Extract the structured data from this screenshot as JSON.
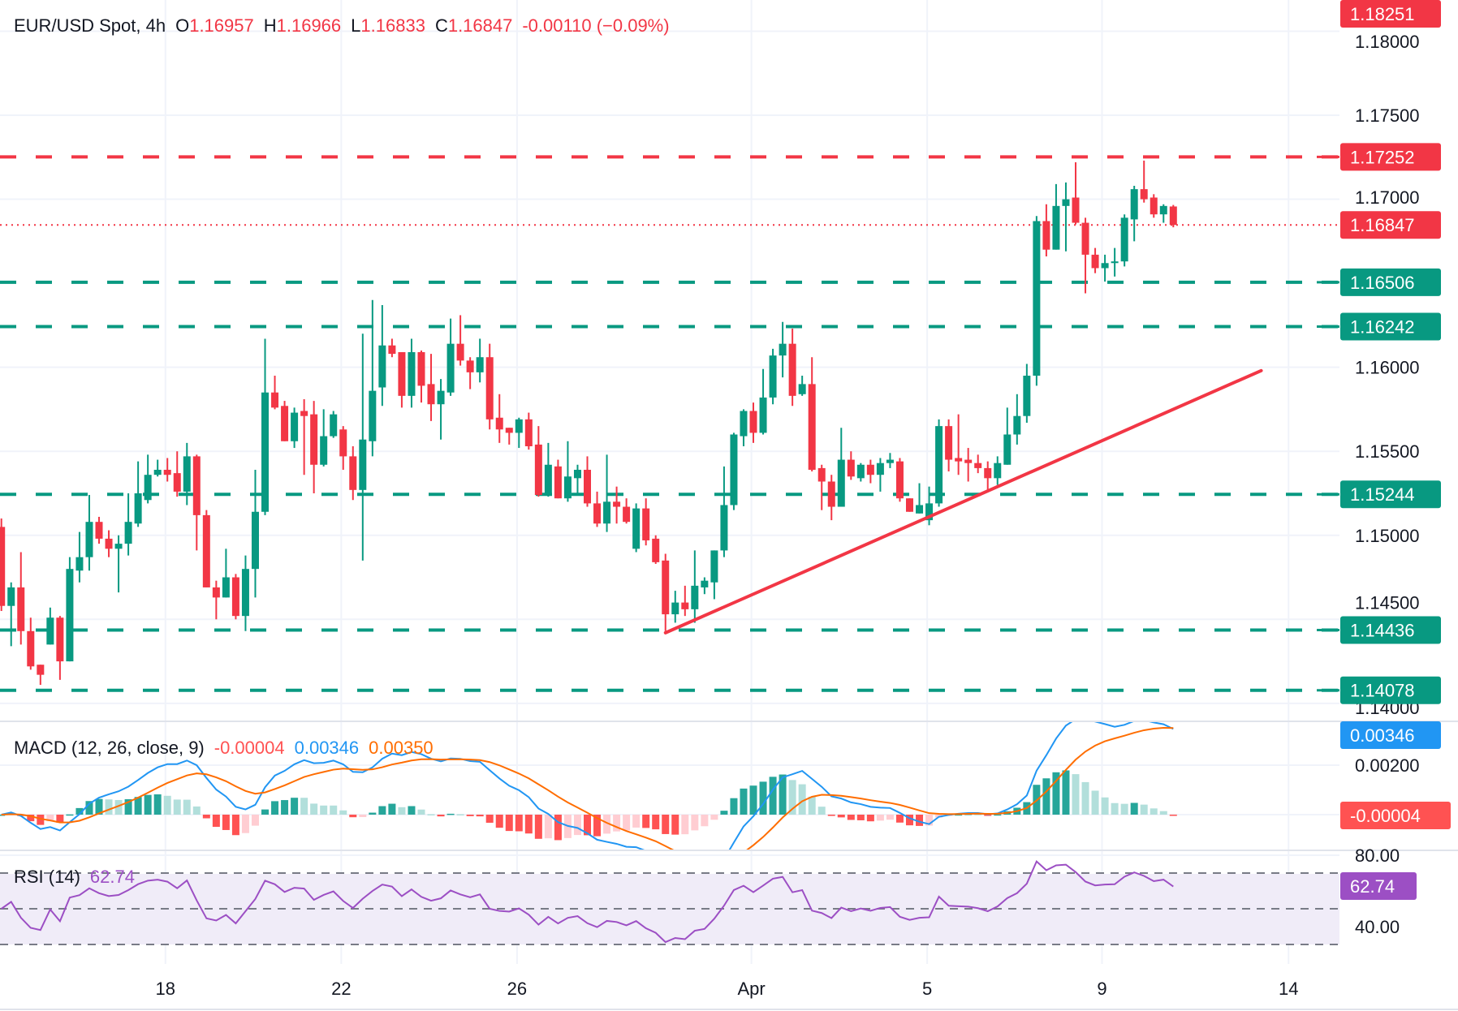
{
  "header": {
    "symbol": "EUR/USD Spot, 4h",
    "open_prefix": "O",
    "open": "1.16957",
    "high_prefix": "H",
    "high": "1.16966",
    "low_prefix": "L",
    "low": "1.16833",
    "close_prefix": "C",
    "close": "1.16847",
    "change": "-0.00110 (−0.09%)"
  },
  "colors": {
    "up": "#089981",
    "down": "#F23645",
    "grid": "#F0F3FA",
    "macd": "#2196F3",
    "signal": "#FF6D00",
    "hist_up_strong": "#26A69A",
    "hist_up_weak": "#B2DFDB",
    "hist_down_strong": "#FF5252",
    "hist_down_weak": "#FFCDD2",
    "rsi": "#9C4FC4",
    "rsi_band": "#F0ECF8"
  },
  "price_axis": {
    "ticks": [
      "1.18000",
      "1.17500",
      "1.17000",
      "1.16000",
      "1.15500",
      "1.15000",
      "1.14500",
      "1.14000"
    ]
  },
  "alert_label": {
    "label": "1.18251",
    "price": 1.18251,
    "color": "#F23645"
  },
  "current_price": {
    "label": "1.16847",
    "price": 1.16847,
    "color": "#F23645"
  },
  "levels": [
    {
      "label": "1.17252",
      "price": 1.17252,
      "color": "#F23645"
    },
    {
      "label": "1.16506",
      "price": 1.16506,
      "color": "#089981"
    },
    {
      "label": "1.16242",
      "price": 1.16242,
      "color": "#089981"
    },
    {
      "label": "1.15244",
      "price": 1.15244,
      "color": "#089981"
    },
    {
      "label": "1.14436",
      "price": 1.14436,
      "color": "#089981"
    },
    {
      "label": "1.14078",
      "price": 1.14078,
      "color": "#089981"
    }
  ],
  "trendline": {
    "color": "#F23645",
    "start": {
      "bar": 68,
      "price": 1.1442
    },
    "end": {
      "bar": 129,
      "price": 1.1598
    }
  },
  "x_axis": {
    "ticks": [
      "18",
      "22",
      "26",
      "Apr",
      "5",
      "9",
      "14"
    ]
  },
  "macd": {
    "title": "MACD (12, 26, close, 9)",
    "hist_value": "-0.00004",
    "macd_value": "0.00346",
    "signal_value": "0.00350",
    "axis_ticks": [
      "0.00200"
    ],
    "macd_label": "0.00346",
    "hist_label": "-0.00004"
  },
  "rsi": {
    "title": "RSI (14)",
    "value": "62.74",
    "axis_ticks": [
      "80.00",
      "40.00"
    ],
    "label": "62.74",
    "levels": [
      70,
      50,
      30
    ]
  },
  "chart_data": {
    "type": "candlestick",
    "title": "EUR/USD Spot, 4h",
    "x_tick_labels": [
      "18",
      "22",
      "26",
      "Apr",
      "5",
      "9",
      "14"
    ],
    "ylim": [
      1.1385,
      1.182
    ],
    "grid": true,
    "ohlc": [
      [
        1.1505,
        1.151,
        1.1455,
        1.1458
      ],
      [
        1.1458,
        1.1472,
        1.1434,
        1.1469
      ],
      [
        1.1469,
        1.149,
        1.1435,
        1.1443
      ],
      [
        1.1443,
        1.1451,
        1.142,
        1.1422
      ],
      [
        1.1423,
        1.1423,
        1.1411,
        1.1417
      ],
      [
        1.1435,
        1.1457,
        1.1435,
        1.1451
      ],
      [
        1.1451,
        1.1452,
        1.1414,
        1.1425
      ],
      [
        1.1425,
        1.1487,
        1.1425,
        1.148
      ],
      [
        1.1479,
        1.1502,
        1.1472,
        1.1487
      ],
      [
        1.1487,
        1.1524,
        1.1479,
        1.1508
      ],
      [
        1.1508,
        1.1511,
        1.1495,
        1.1498
      ],
      [
        1.1498,
        1.1503,
        1.1487,
        1.1492
      ],
      [
        1.1492,
        1.15,
        1.1466,
        1.1495
      ],
      [
        1.1495,
        1.1525,
        1.1488,
        1.1508
      ],
      [
        1.1507,
        1.1544,
        1.1505,
        1.1525
      ],
      [
        1.1521,
        1.1548,
        1.1519,
        1.1536
      ],
      [
        1.1536,
        1.1545,
        1.1535,
        1.1539
      ],
      [
        1.1539,
        1.1546,
        1.1532,
        1.1536
      ],
      [
        1.1537,
        1.155,
        1.1523,
        1.1526
      ],
      [
        1.1526,
        1.1555,
        1.1518,
        1.1547
      ],
      [
        1.1547,
        1.1548,
        1.1491,
        1.1512
      ],
      [
        1.1512,
        1.1515,
        1.1469,
        1.1469
      ],
      [
        1.1469,
        1.1473,
        1.145,
        1.1463
      ],
      [
        1.1463,
        1.1492,
        1.1463,
        1.1475
      ],
      [
        1.1475,
        1.1477,
        1.145,
        1.1452
      ],
      [
        1.1452,
        1.1488,
        1.1443,
        1.148
      ],
      [
        1.148,
        1.1539,
        1.1463,
        1.1514
      ],
      [
        1.1514,
        1.1617,
        1.1512,
        1.1585
      ],
      [
        1.1585,
        1.1595,
        1.1575,
        1.1576
      ],
      [
        1.1577,
        1.158,
        1.1556,
        1.1556
      ],
      [
        1.1556,
        1.1576,
        1.1552,
        1.1573
      ],
      [
        1.1574,
        1.1581,
        1.1536,
        1.1571
      ],
      [
        1.1572,
        1.158,
        1.1525,
        1.1542
      ],
      [
        1.1542,
        1.1575,
        1.1541,
        1.1559
      ],
      [
        1.1559,
        1.1574,
        1.1558,
        1.1572
      ],
      [
        1.1563,
        1.1565,
        1.1539,
        1.1547
      ],
      [
        1.1547,
        1.1553,
        1.1521,
        1.1527
      ],
      [
        1.1527,
        1.162,
        1.1485,
        1.1557
      ],
      [
        1.1556,
        1.164,
        1.1547,
        1.1586
      ],
      [
        1.1588,
        1.1637,
        1.1577,
        1.1613
      ],
      [
        1.1613,
        1.1617,
        1.1606,
        1.1608
      ],
      [
        1.1609,
        1.1609,
        1.1576,
        1.1583
      ],
      [
        1.1583,
        1.1617,
        1.1576,
        1.1609
      ],
      [
        1.1609,
        1.161,
        1.1579,
        1.1589
      ],
      [
        1.159,
        1.1608,
        1.1568,
        1.1578
      ],
      [
        1.1578,
        1.1593,
        1.1557,
        1.1586
      ],
      [
        1.1585,
        1.1629,
        1.1583,
        1.1614
      ],
      [
        1.1614,
        1.1631,
        1.1601,
        1.1604
      ],
      [
        1.1604,
        1.1606,
        1.1587,
        1.1597
      ],
      [
        1.1597,
        1.1617,
        1.1591,
        1.1606
      ],
      [
        1.1606,
        1.1614,
        1.1563,
        1.1569
      ],
      [
        1.157,
        1.1584,
        1.1555,
        1.1563
      ],
      [
        1.1564,
        1.1564,
        1.1554,
        1.1561
      ],
      [
        1.1561,
        1.157,
        1.1552,
        1.1569
      ],
      [
        1.1569,
        1.1573,
        1.1551,
        1.1553
      ],
      [
        1.1554,
        1.1565,
        1.1523,
        1.1524
      ],
      [
        1.1524,
        1.1555,
        1.1523,
        1.1542
      ],
      [
        1.1541,
        1.1545,
        1.1522,
        1.1522
      ],
      [
        1.1522,
        1.1556,
        1.152,
        1.1535
      ],
      [
        1.1534,
        1.1542,
        1.1524,
        1.1539
      ],
      [
        1.1539,
        1.1547,
        1.1517,
        1.1519
      ],
      [
        1.1519,
        1.1526,
        1.1505,
        1.1507
      ],
      [
        1.1507,
        1.1548,
        1.1502,
        1.152
      ],
      [
        1.152,
        1.1529,
        1.1507,
        1.1517
      ],
      [
        1.1517,
        1.1522,
        1.1507,
        1.1508
      ],
      [
        1.1492,
        1.1519,
        1.149,
        1.1516
      ],
      [
        1.1516,
        1.1522,
        1.1494,
        1.1497
      ],
      [
        1.1498,
        1.15,
        1.1483,
        1.1484
      ],
      [
        1.1485,
        1.1489,
        1.1443,
        1.1453
      ],
      [
        1.1453,
        1.1467,
        1.1448,
        1.146
      ],
      [
        1.146,
        1.147,
        1.1452,
        1.1456
      ],
      [
        1.1456,
        1.1491,
        1.1448,
        1.147
      ],
      [
        1.1469,
        1.1475,
        1.1465,
        1.1473
      ],
      [
        1.1472,
        1.1491,
        1.1462,
        1.1491
      ],
      [
        1.1491,
        1.1541,
        1.1487,
        1.1518
      ],
      [
        1.1518,
        1.1561,
        1.1515,
        1.156
      ],
      [
        1.1559,
        1.1575,
        1.1553,
        1.1574
      ],
      [
        1.1574,
        1.1579,
        1.1555,
        1.1561
      ],
      [
        1.1561,
        1.1599,
        1.156,
        1.1582
      ],
      [
        1.1582,
        1.1611,
        1.1578,
        1.1607
      ],
      [
        1.1607,
        1.1627,
        1.1594,
        1.1614
      ],
      [
        1.1614,
        1.1623,
        1.1577,
        1.1583
      ],
      [
        1.1584,
        1.1595,
        1.1583,
        1.159
      ],
      [
        1.159,
        1.1606,
        1.1538,
        1.1539
      ],
      [
        1.154,
        1.1542,
        1.1515,
        1.1532
      ],
      [
        1.1532,
        1.1536,
        1.1509,
        1.1517
      ],
      [
        1.1517,
        1.1564,
        1.1517,
        1.1545
      ],
      [
        1.1545,
        1.155,
        1.1533,
        1.1535
      ],
      [
        1.1534,
        1.1543,
        1.1532,
        1.1542
      ],
      [
        1.1542,
        1.1545,
        1.1531,
        1.1536
      ],
      [
        1.1536,
        1.1546,
        1.1526,
        1.1543
      ],
      [
        1.1543,
        1.1549,
        1.154,
        1.1545
      ],
      [
        1.1544,
        1.1546,
        1.152,
        1.1522
      ],
      [
        1.1522,
        1.1522,
        1.1514,
        1.1514
      ],
      [
        1.1513,
        1.1531,
        1.1513,
        1.1518
      ],
      [
        1.1509,
        1.1529,
        1.1506,
        1.1519
      ],
      [
        1.1519,
        1.1569,
        1.1517,
        1.1565
      ],
      [
        1.1565,
        1.1569,
        1.1538,
        1.1545
      ],
      [
        1.1546,
        1.1572,
        1.1536,
        1.1544
      ],
      [
        1.1545,
        1.1552,
        1.1532,
        1.1543
      ],
      [
        1.1543,
        1.1548,
        1.1537,
        1.154
      ],
      [
        1.154,
        1.1544,
        1.1526,
        1.1534
      ],
      [
        1.1534,
        1.1547,
        1.153,
        1.1543
      ],
      [
        1.1542,
        1.1576,
        1.1542,
        1.156
      ],
      [
        1.156,
        1.1584,
        1.1554,
        1.1571
      ],
      [
        1.1571,
        1.1602,
        1.1567,
        1.1595
      ],
      [
        1.1595,
        1.169,
        1.1589,
        1.1687
      ],
      [
        1.1687,
        1.1697,
        1.1666,
        1.167
      ],
      [
        1.167,
        1.1709,
        1.167,
        1.1696
      ],
      [
        1.1696,
        1.171,
        1.1669,
        1.17
      ],
      [
        1.1701,
        1.1722,
        1.1685,
        1.1686
      ],
      [
        1.1686,
        1.1689,
        1.1644,
        1.1667
      ],
      [
        1.1667,
        1.1671,
        1.1656,
        1.1659
      ],
      [
        1.1659,
        1.1667,
        1.1651,
        1.1662
      ],
      [
        1.1662,
        1.1671,
        1.1654,
        1.1663
      ],
      [
        1.1663,
        1.1691,
        1.166,
        1.1689
      ],
      [
        1.1688,
        1.1708,
        1.1675,
        1.1706
      ],
      [
        1.1706,
        1.1723,
        1.1698,
        1.17
      ],
      [
        1.1701,
        1.1703,
        1.1689,
        1.1691
      ],
      [
        1.1691,
        1.1697,
        1.1686,
        1.1696
      ],
      [
        1.16957,
        1.16966,
        1.16833,
        1.16847
      ]
    ]
  }
}
